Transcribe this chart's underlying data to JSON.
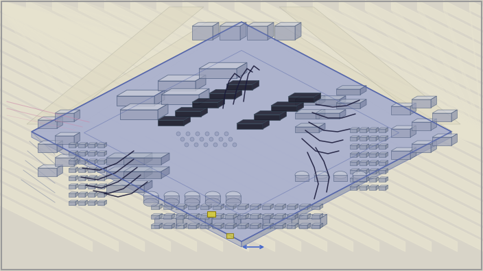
{
  "bg_outer": "#d8d4c8",
  "bg_stripe": "#ccc8b8",
  "pcb_fill": "#c4c8d8",
  "pcb_overlay": "#9aa4cc",
  "pcb_overlay_alpha": 0.45,
  "pcb_edge": "#5566aa",
  "wire_color": "#1a1a3a",
  "comp_fill": "#aab0c8",
  "comp_edge": "#445566",
  "box_top": "#c8ccd8",
  "box_front": "#aab0c0",
  "box_side": "#9aa0b8",
  "yellow_color": "#d4cc40",
  "blue_line": "#4466cc",
  "pink_line": "#cc88aa",
  "cream_stripe": "#e8e4d0",
  "figsize": [
    7.04,
    3.95
  ],
  "dpi": 100
}
